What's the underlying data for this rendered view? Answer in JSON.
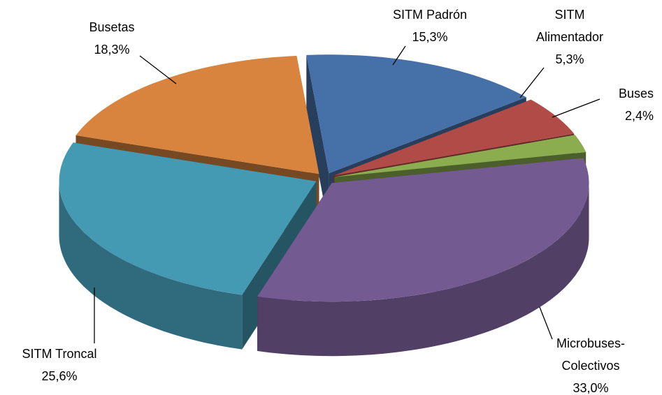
{
  "chart_data": {
    "type": "pie3d",
    "categories": [
      "SITM Padrón",
      "SITM Alimentador",
      "Buses",
      "Microbuses-Colectivos",
      "SITM Troncal",
      "Busetas"
    ],
    "values": [
      15.3,
      5.3,
      2.4,
      33.0,
      25.6,
      18.3
    ],
    "value_labels": [
      "15,3%",
      "5,3%",
      "2,4%",
      "33,0%",
      "25,6%",
      "18,3%"
    ],
    "colors": [
      "#4671a8",
      "#b04b47",
      "#8bad4f",
      "#735a91",
      "#4499b3",
      "#d8843e"
    ]
  }
}
